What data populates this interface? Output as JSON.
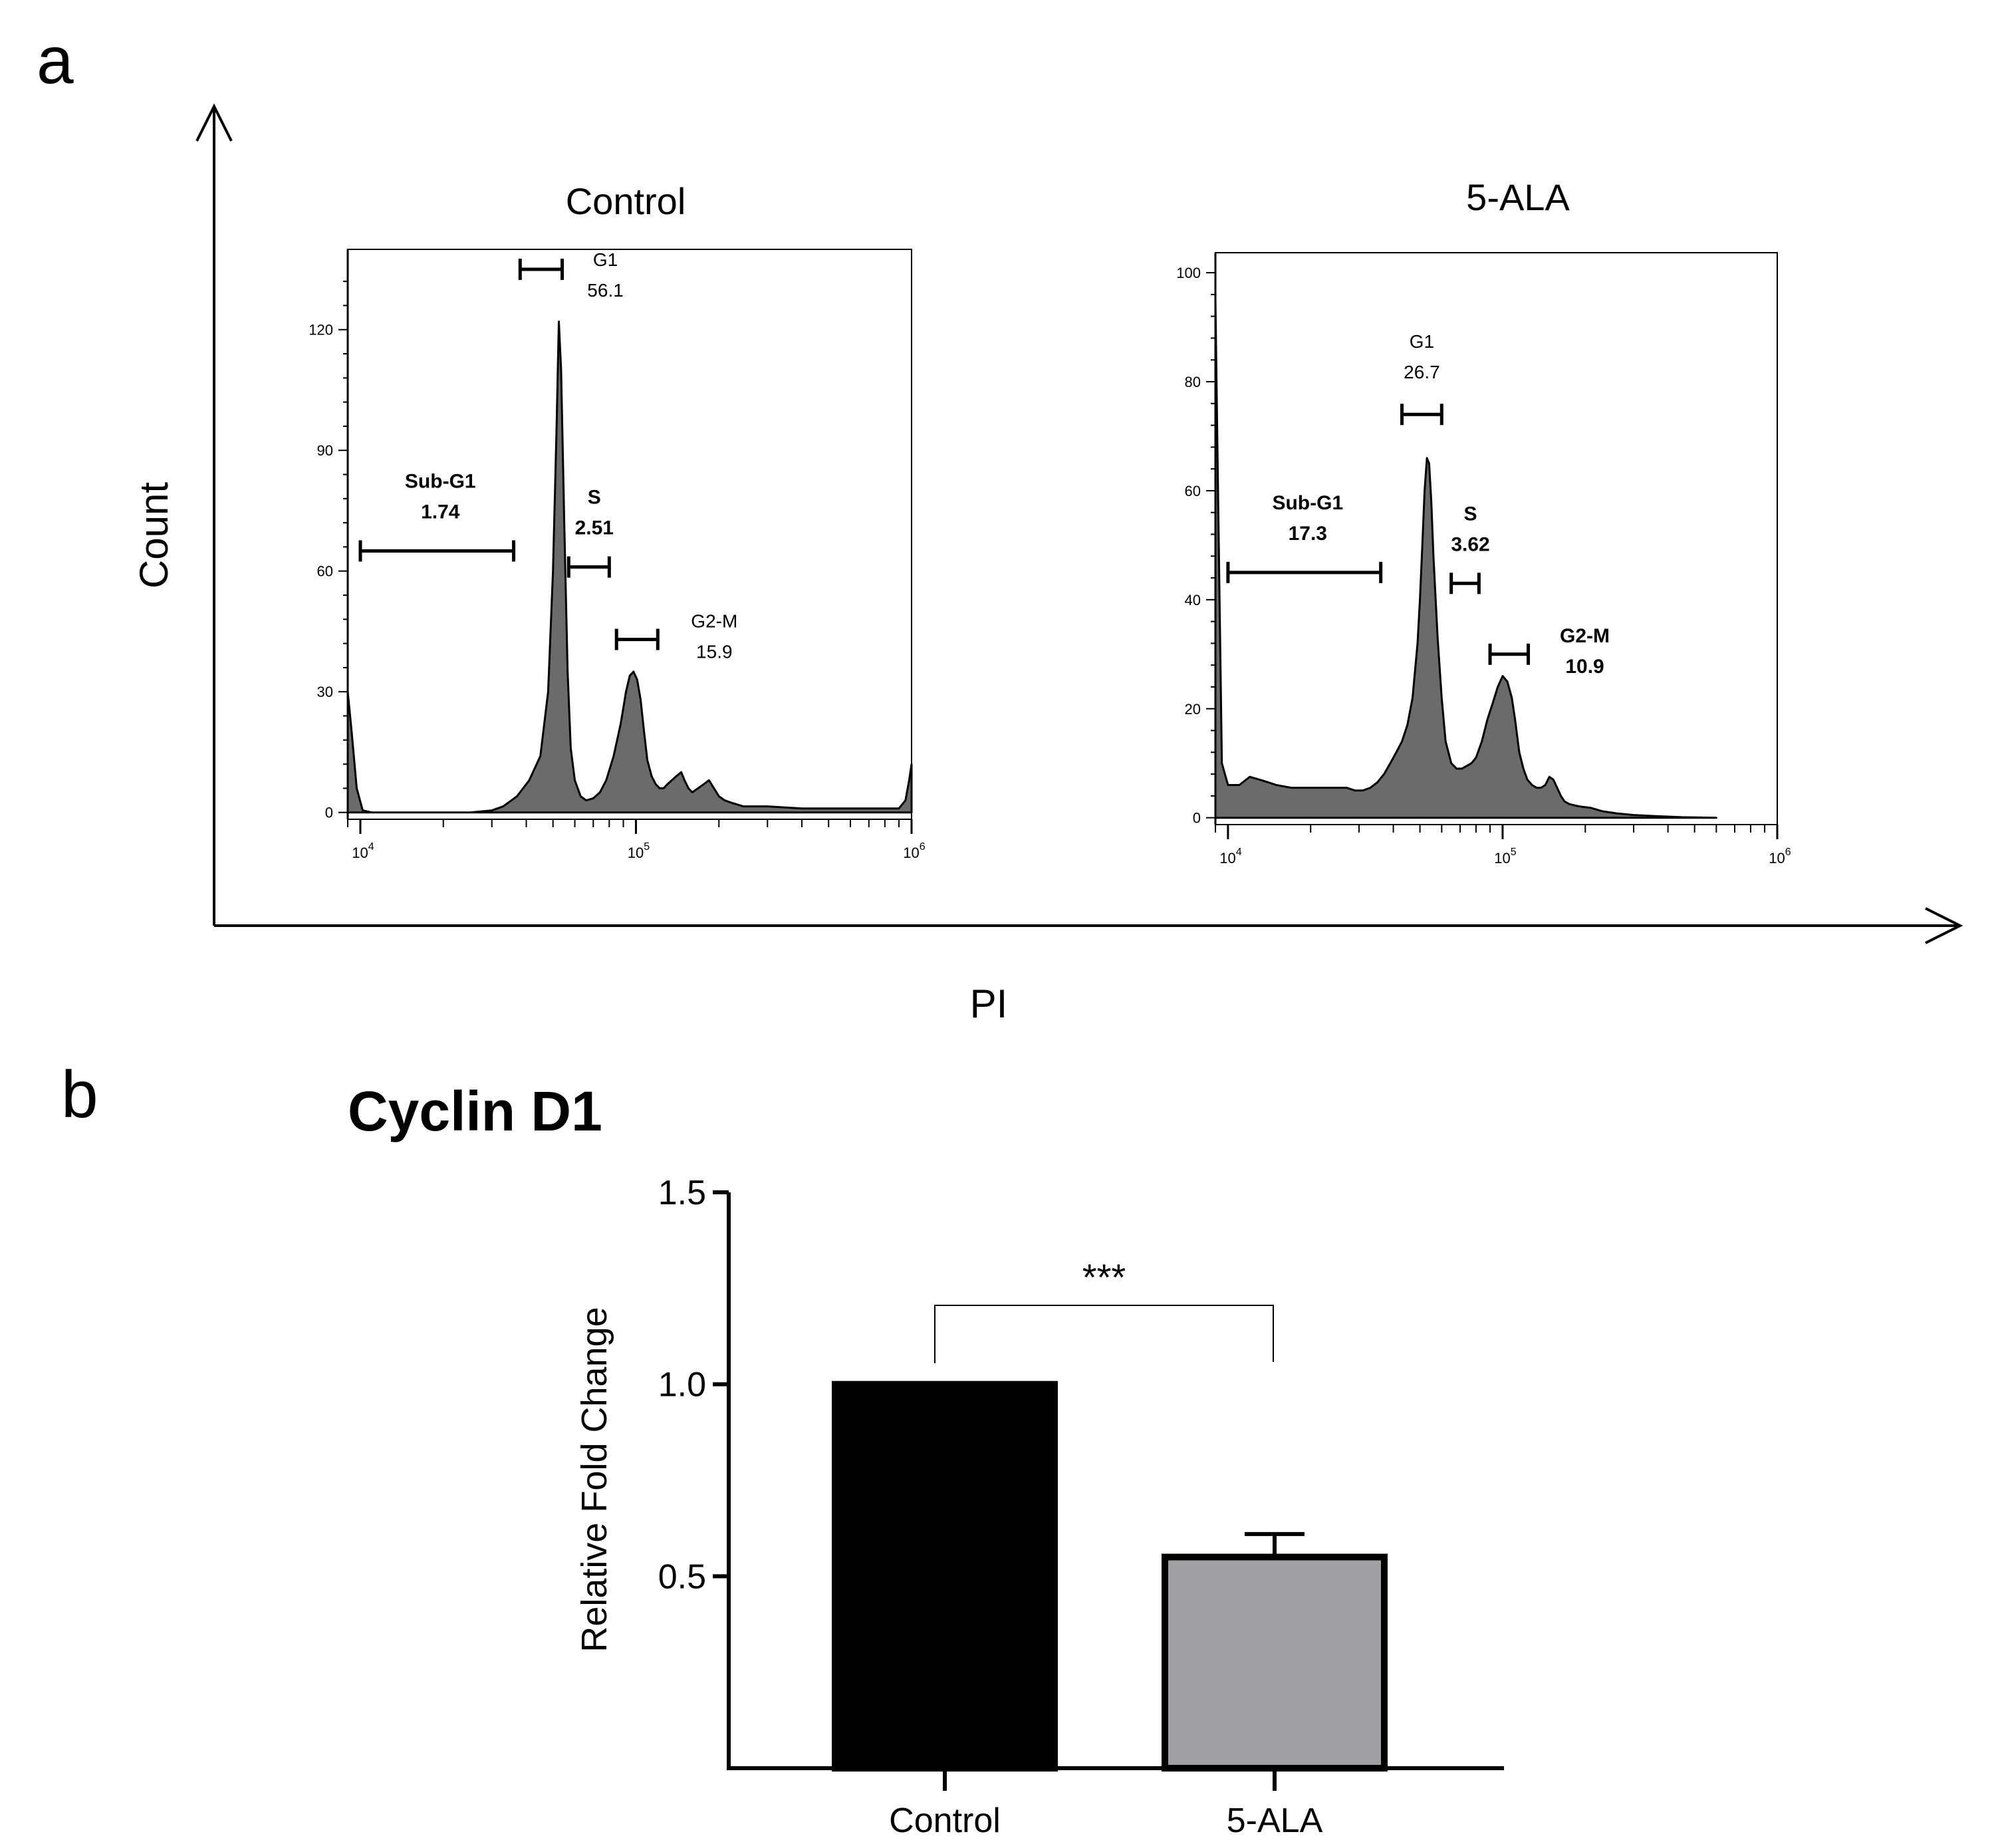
{
  "panel_a": {
    "letter": "a",
    "y_title": "Count",
    "x_title": "PI",
    "x_ticks": [
      {
        "value": 10000,
        "base": "10",
        "exp": "4"
      },
      {
        "value": 100000,
        "base": "10",
        "exp": "5"
      },
      {
        "value": 1000000,
        "base": "10",
        "exp": "6"
      }
    ]
  },
  "panel_b": {
    "letter": "b"
  },
  "chart_data": [
    {
      "type": "area",
      "title": "Control",
      "xscale": "log",
      "xlim": [
        9000,
        1000000
      ],
      "ylim": [
        0,
        135
      ],
      "yticks": [
        0,
        30,
        60,
        90,
        120
      ],
      "series": [
        {
          "x": [
            9000,
            9300,
            9700,
            10200,
            11000,
            15000,
            20000,
            25000,
            30000,
            33000,
            37000,
            41000,
            45000,
            48000,
            50000,
            51500,
            52500,
            53500,
            55000,
            56500,
            58000,
            60000,
            63000,
            66000,
            70000,
            74000,
            78000,
            83000,
            88000,
            92000,
            95000,
            98000,
            101000,
            104000,
            107000,
            110000,
            114000,
            118000,
            122000,
            126000,
            130000,
            135000,
            140000,
            146000,
            150000,
            155000,
            160000,
            168000,
            176000,
            184000,
            192000,
            200000,
            210000,
            220000,
            232000,
            245000,
            260000,
            300000,
            400000,
            500000,
            600000,
            700000,
            800000,
            900000,
            950000,
            980000,
            1000000
          ],
          "y": [
            30,
            20,
            6,
            0.5,
            0,
            0,
            0,
            0,
            0.5,
            1.5,
            4,
            8,
            14,
            30,
            60,
            95,
            122,
            110,
            70,
            35,
            16,
            8,
            4,
            3,
            3.5,
            5,
            8,
            14,
            22,
            30,
            34,
            35,
            33,
            28,
            20,
            13,
            9,
            7,
            6,
            6,
            7,
            8,
            9,
            10,
            8,
            6,
            5,
            6,
            7,
            8,
            6,
            4,
            3,
            2.5,
            2,
            1.5,
            1.5,
            1.5,
            1,
            1,
            1,
            1,
            1,
            1,
            3,
            8,
            12
          ]
        }
      ],
      "gates": [
        {
          "name": "Sub-G1",
          "value": "1.74",
          "range": [
            10000,
            36000
          ],
          "y": 65
        },
        {
          "name": "G1",
          "value": "56.1",
          "range": [
            38000,
            54000
          ],
          "y": 135
        },
        {
          "name": "S",
          "value": "2.51",
          "range": [
            57000,
            80000
          ],
          "y": 61
        },
        {
          "name": "G2-M",
          "value": "15.9",
          "range": [
            85000,
            120000
          ],
          "y": 43
        }
      ]
    },
    {
      "type": "area",
      "title": "5-ALA",
      "xscale": "log",
      "xlim": [
        9000,
        1000000
      ],
      "ylim": [
        0,
        100
      ],
      "yticks": [
        0,
        20,
        40,
        60,
        80,
        100
      ],
      "series": [
        {
          "x": [
            9000,
            9200,
            9500,
            10000,
            10500,
            11000,
            12000,
            13000,
            14000,
            15000,
            17000,
            19000,
            21000,
            23000,
            25000,
            27000,
            29000,
            31000,
            33000,
            35000,
            37000,
            39000,
            41000,
            43000,
            45000,
            47000,
            49000,
            50000,
            51000,
            52000,
            53000,
            54000,
            55000,
            56000,
            58000,
            60000,
            62000,
            65000,
            68000,
            71000,
            74000,
            77000,
            80000,
            84000,
            88000,
            92000,
            96000,
            100000,
            104000,
            108000,
            111000,
            115000,
            119000,
            123000,
            128000,
            133000,
            138000,
            143000,
            148000,
            153000,
            158000,
            163000,
            168000,
            175000,
            185000,
            195000,
            210000,
            230000,
            260000,
            300000,
            360000,
            450000,
            600000
          ],
          "y": [
            95,
            60,
            10,
            6,
            6,
            6,
            7.5,
            7,
            6.5,
            6,
            5.5,
            5.5,
            5.5,
            5.5,
            5.5,
            5.5,
            5,
            5,
            5.5,
            6.5,
            8,
            10,
            12,
            14,
            17,
            22,
            32,
            40,
            50,
            60,
            66,
            65,
            58,
            48,
            33,
            22,
            14,
            10,
            9,
            9,
            9.5,
            10,
            11,
            14,
            18,
            21,
            24,
            26,
            25,
            22,
            18,
            12,
            9,
            7,
            6,
            5.5,
            5.5,
            6,
            7.5,
            7,
            5.5,
            4,
            3,
            2.5,
            2.2,
            2,
            1.8,
            1.2,
            0.8,
            0.5,
            0.3,
            0.1,
            0
          ]
        }
      ],
      "gates": [
        {
          "name": "Sub-G1",
          "value": "17.3",
          "range": [
            10000,
            36000
          ],
          "y": 45
        },
        {
          "name": "G1",
          "value": "26.7",
          "range": [
            43000,
            60000
          ],
          "y": 74
        },
        {
          "name": "S",
          "value": "3.62",
          "range": [
            65000,
            82000
          ],
          "y": 43
        },
        {
          "name": "G2-M",
          "value": "10.9",
          "range": [
            90000,
            124000
          ],
          "y": 30
        }
      ]
    },
    {
      "type": "bar",
      "title": "Cyclin D1",
      "ylabel": "Relative Fold Change",
      "categories": [
        "Control",
        "5-ALA"
      ],
      "values": [
        1.0,
        0.55
      ],
      "error": [
        0,
        0.06
      ],
      "ylim": [
        0,
        1.5
      ],
      "yticks": [
        {
          "value": 0.5,
          "label": "0.5"
        },
        {
          "value": 1.0,
          "label": "1.0"
        },
        {
          "value": 1.5,
          "label": "1.5"
        }
      ],
      "colors": [
        "#000000",
        "#a0a0a4"
      ],
      "significance": {
        "label": "***",
        "between": [
          0,
          1
        ]
      }
    }
  ]
}
